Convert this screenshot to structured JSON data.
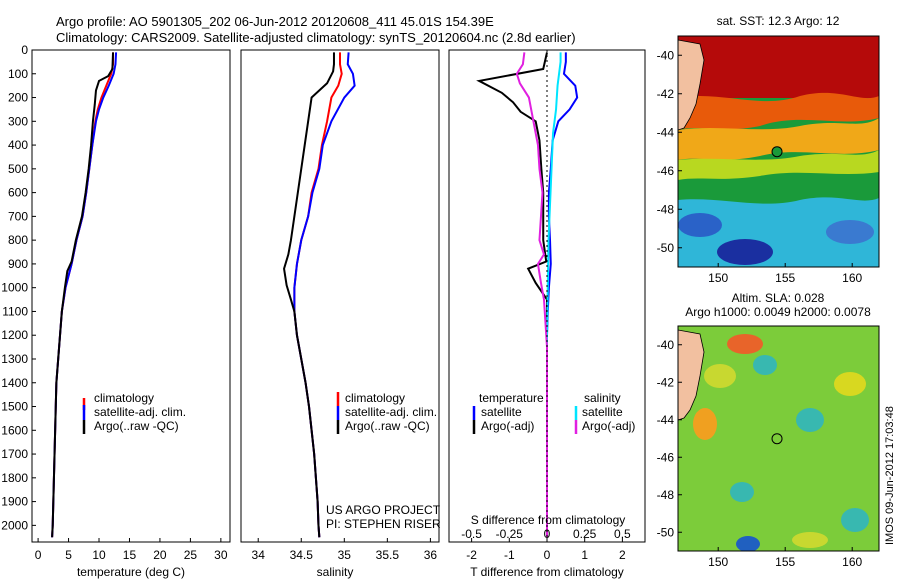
{
  "header": {
    "title_line1": "Argo profile: AO 5901305_202 06-Jun-2012 20120608_411 45.01S 154.39E",
    "title_line2": "Climatology: CARS2009. Satellite-adjusted climatology: synTS_20120604.nc (2.8d earlier)"
  },
  "colors": {
    "climatology": "#ff0000",
    "satellite": "#0000ff",
    "argo": "#000000",
    "salinity_satellite": "#00e5ff",
    "salinity_argo": "#e020e0"
  },
  "depth_axis": {
    "ticks": [
      0,
      100,
      200,
      300,
      400,
      500,
      600,
      700,
      800,
      900,
      1000,
      1100,
      1200,
      1300,
      1400,
      1500,
      1600,
      1700,
      1800,
      1900,
      2000
    ],
    "range": [
      0,
      2070
    ]
  },
  "chart_data": [
    {
      "type": "line",
      "xlabel": "temperature (deg C)",
      "xlim": [
        -1,
        31.5
      ],
      "xticks": [
        0,
        5,
        10,
        15,
        20,
        25,
        30
      ],
      "ylim": [
        0,
        2070
      ],
      "legend": {
        "placement": "center-right",
        "items": [
          "climatology",
          "satellite-adj. clim.",
          "Argo(..raw -QC)"
        ]
      },
      "series": [
        {
          "name": "climatology",
          "color": "#ff0000",
          "points": [
            [
              12.3,
              10
            ],
            [
              12.3,
              60
            ],
            [
              12.0,
              100
            ],
            [
              11.2,
              150
            ],
            [
              10.4,
              200
            ],
            [
              9.8,
              250
            ],
            [
              9.4,
              300
            ],
            [
              8.9,
              400
            ],
            [
              8.4,
              500
            ],
            [
              7.9,
              600
            ],
            [
              7.3,
              700
            ],
            [
              6.3,
              800
            ],
            [
              5.5,
              900
            ],
            [
              4.5,
              1000
            ],
            [
              3.9,
              1100
            ],
            [
              3.6,
              1200
            ],
            [
              3.3,
              1300
            ],
            [
              3.0,
              1400
            ],
            [
              2.9,
              1500
            ],
            [
              2.8,
              1600
            ],
            [
              2.7,
              1700
            ],
            [
              2.6,
              1800
            ],
            [
              2.5,
              1900
            ],
            [
              2.4,
              2000
            ],
            [
              2.3,
              2050
            ]
          ]
        },
        {
          "name": "satellite-adj. clim.",
          "color": "#0000ff",
          "points": [
            [
              12.8,
              10
            ],
            [
              12.7,
              60
            ],
            [
              12.4,
              100
            ],
            [
              11.6,
              150
            ],
            [
              10.7,
              200
            ],
            [
              10.0,
              250
            ],
            [
              9.5,
              300
            ],
            [
              8.9,
              400
            ],
            [
              8.4,
              500
            ],
            [
              7.9,
              600
            ],
            [
              7.3,
              700
            ],
            [
              6.3,
              800
            ],
            [
              5.5,
              900
            ],
            [
              4.5,
              1000
            ],
            [
              3.9,
              1100
            ],
            [
              3.6,
              1200
            ],
            [
              3.3,
              1300
            ],
            [
              3.0,
              1400
            ],
            [
              2.9,
              1500
            ],
            [
              2.8,
              1600
            ],
            [
              2.7,
              1700
            ],
            [
              2.6,
              1800
            ],
            [
              2.5,
              1900
            ],
            [
              2.4,
              2000
            ],
            [
              2.3,
              2050
            ]
          ]
        },
        {
          "name": "Argo(..raw -QC)",
          "color": "#000000",
          "points": [
            [
              12.3,
              10
            ],
            [
              12.2,
              80
            ],
            [
              11.5,
              110
            ],
            [
              10.0,
              130
            ],
            [
              9.5,
              170
            ],
            [
              9.3,
              230
            ],
            [
              9.0,
              300
            ],
            [
              8.7,
              400
            ],
            [
              8.3,
              500
            ],
            [
              7.8,
              600
            ],
            [
              7.2,
              700
            ],
            [
              6.2,
              800
            ],
            [
              5.5,
              890
            ],
            [
              4.8,
              930
            ],
            [
              4.4,
              1000
            ],
            [
              3.9,
              1100
            ],
            [
              3.6,
              1200
            ],
            [
              3.3,
              1300
            ],
            [
              3.0,
              1400
            ],
            [
              2.9,
              1500
            ],
            [
              2.8,
              1600
            ],
            [
              2.7,
              1700
            ],
            [
              2.6,
              1800
            ],
            [
              2.5,
              1900
            ],
            [
              2.4,
              2000
            ],
            [
              2.3,
              2050
            ]
          ]
        }
      ]
    },
    {
      "type": "line",
      "xlabel": "salinity",
      "xlim": [
        33.8,
        36.1
      ],
      "xticks": [
        34,
        34.5,
        35,
        35.5,
        36
      ],
      "ylim": [
        0,
        2070
      ],
      "legend": {
        "placement": "center-right",
        "items": [
          "climatology",
          "satellite-adj. clim.",
          "Argo(..raw -QC)"
        ]
      },
      "annotation_line1": "US ARGO PROJECT",
      "annotation_line2": "PI: STEPHEN RISER",
      "series": [
        {
          "name": "climatology",
          "color": "#ff0000",
          "points": [
            [
              34.95,
              10
            ],
            [
              34.95,
              60
            ],
            [
              34.97,
              100
            ],
            [
              34.93,
              150
            ],
            [
              34.85,
              200
            ],
            [
              34.8,
              300
            ],
            [
              34.74,
              400
            ],
            [
              34.7,
              500
            ],
            [
              34.62,
              600
            ],
            [
              34.58,
              700
            ],
            [
              34.5,
              800
            ],
            [
              34.45,
              900
            ],
            [
              34.42,
              1000
            ],
            [
              34.42,
              1100
            ],
            [
              34.45,
              1200
            ],
            [
              34.5,
              1300
            ],
            [
              34.55,
              1400
            ],
            [
              34.59,
              1500
            ],
            [
              34.62,
              1600
            ],
            [
              34.65,
              1700
            ],
            [
              34.67,
              1800
            ],
            [
              34.69,
              1900
            ],
            [
              34.7,
              2000
            ],
            [
              34.71,
              2050
            ]
          ]
        },
        {
          "name": "satellite-adj. clim.",
          "color": "#0000ff",
          "points": [
            [
              35.05,
              10
            ],
            [
              35.04,
              60
            ],
            [
              35.1,
              100
            ],
            [
              35.12,
              150
            ],
            [
              35.0,
              200
            ],
            [
              34.85,
              300
            ],
            [
              34.75,
              400
            ],
            [
              34.71,
              500
            ],
            [
              34.63,
              600
            ],
            [
              34.58,
              700
            ],
            [
              34.5,
              800
            ],
            [
              34.45,
              900
            ],
            [
              34.42,
              1000
            ],
            [
              34.42,
              1100
            ],
            [
              34.45,
              1200
            ],
            [
              34.5,
              1300
            ],
            [
              34.55,
              1400
            ],
            [
              34.59,
              1500
            ],
            [
              34.62,
              1600
            ],
            [
              34.65,
              1700
            ],
            [
              34.67,
              1800
            ],
            [
              34.69,
              1900
            ],
            [
              34.7,
              2000
            ],
            [
              34.71,
              2050
            ]
          ]
        },
        {
          "name": "Argo(..raw -QC)",
          "color": "#000000",
          "points": [
            [
              34.88,
              10
            ],
            [
              34.88,
              60
            ],
            [
              34.87,
              90
            ],
            [
              34.8,
              140
            ],
            [
              34.62,
              200
            ],
            [
              34.58,
              300
            ],
            [
              34.54,
              400
            ],
            [
              34.5,
              500
            ],
            [
              34.46,
              600
            ],
            [
              34.42,
              700
            ],
            [
              34.38,
              800
            ],
            [
              34.35,
              860
            ],
            [
              34.3,
              920
            ],
            [
              34.33,
              990
            ],
            [
              34.38,
              1050
            ],
            [
              34.42,
              1100
            ],
            [
              34.45,
              1200
            ],
            [
              34.5,
              1300
            ],
            [
              34.55,
              1400
            ],
            [
              34.59,
              1500
            ],
            [
              34.62,
              1600
            ],
            [
              34.65,
              1700
            ],
            [
              34.67,
              1800
            ],
            [
              34.69,
              1900
            ],
            [
              34.7,
              2000
            ],
            [
              34.71,
              2050
            ]
          ]
        }
      ]
    },
    {
      "type": "line",
      "xlabel": "T difference from climatology",
      "top_axis_label": "S difference from climatology",
      "xlim": [
        -2.6,
        2.6
      ],
      "xticks": [
        -2,
        -1,
        0,
        1,
        2
      ],
      "top_xlim": [
        -0.65,
        0.65
      ],
      "top_xticks_labels": [
        "-0.5",
        "-0.25",
        "0",
        "0.25",
        "0.5"
      ],
      "top_xticks": [
        -0.5,
        -0.25,
        0,
        0.25,
        0.5
      ],
      "ylim": [
        0,
        2070
      ],
      "legend_temperature": {
        "header": "temperature",
        "items": [
          "satellite",
          "Argo(-adj)"
        ]
      },
      "legend_salinity": {
        "header": "salinity",
        "items": [
          "satellite",
          "Argo(-adj)"
        ]
      },
      "series": [
        {
          "name": "temperature satellite",
          "color": "#0000ff",
          "points": [
            [
              0.5,
              10
            ],
            [
              0.5,
              50
            ],
            [
              0.45,
              100
            ],
            [
              0.75,
              150
            ],
            [
              0.8,
              200
            ],
            [
              0.6,
              250
            ],
            [
              0.3,
              300
            ],
            [
              0.15,
              380
            ],
            [
              0.1,
              500
            ],
            [
              0.05,
              600
            ],
            [
              0.05,
              700
            ],
            [
              0.08,
              800
            ],
            [
              0.1,
              900
            ],
            [
              0.05,
              1000
            ],
            [
              0.02,
              1100
            ],
            [
              0.0,
              1200
            ],
            [
              0.0,
              1400
            ],
            [
              0.0,
              2050
            ]
          ]
        },
        {
          "name": "temperature Argo(-adj)",
          "color": "#000000",
          "points": [
            [
              0.0,
              10
            ],
            [
              -0.1,
              80
            ],
            [
              -1.8,
              130
            ],
            [
              -1.2,
              180
            ],
            [
              -0.9,
              220
            ],
            [
              -0.7,
              260
            ],
            [
              -0.3,
              300
            ],
            [
              -0.2,
              380
            ],
            [
              -0.15,
              500
            ],
            [
              -0.1,
              600
            ],
            [
              -0.1,
              700
            ],
            [
              -0.1,
              800
            ],
            [
              -0.02,
              890
            ],
            [
              -0.5,
              920
            ],
            [
              -0.3,
              980
            ],
            [
              0.0,
              1050
            ],
            [
              0.0,
              1200
            ],
            [
              0.0,
              1400
            ],
            [
              0.0,
              2050
            ]
          ]
        },
        {
          "name": "salinity satellite",
          "color": "#00e5ff",
          "points": [
            [
              0.09,
              10
            ],
            [
              0.09,
              50
            ],
            [
              0.08,
              100
            ],
            [
              0.07,
              150
            ],
            [
              0.06,
              250
            ],
            [
              0.04,
              350
            ],
            [
              0.03,
              500
            ],
            [
              0.02,
              650
            ],
            [
              0.01,
              800
            ],
            [
              0.005,
              1000
            ],
            [
              0.0,
              1200
            ],
            [
              0.0,
              2050
            ]
          ]
        },
        {
          "name": "salinity Argo(-adj)",
          "color": "#e020e0",
          "points": [
            [
              -0.15,
              10
            ],
            [
              -0.16,
              60
            ],
            [
              -0.2,
              100
            ],
            [
              -0.18,
              140
            ],
            [
              -0.12,
              200
            ],
            [
              -0.09,
              300
            ],
            [
              -0.06,
              400
            ],
            [
              -0.05,
              500
            ],
            [
              -0.03,
              600
            ],
            [
              -0.04,
              700
            ],
            [
              -0.05,
              800
            ],
            [
              -0.02,
              860
            ],
            [
              -0.06,
              900
            ],
            [
              -0.04,
              980
            ],
            [
              -0.02,
              1050
            ],
            [
              -0.01,
              1150
            ],
            [
              0.0,
              1250
            ],
            [
              0.0,
              1400
            ],
            [
              0.0,
              2050
            ]
          ]
        }
      ]
    },
    {
      "type": "heatmap",
      "title": "sat. SST: 12.3 Argo: 12",
      "xlim": [
        147,
        162
      ],
      "ylim": [
        -51,
        -39
      ],
      "xticks": [
        150,
        155,
        160
      ],
      "yticks": [
        -40,
        -42,
        -44,
        -46,
        -48,
        -50
      ],
      "marker": {
        "lon": 154.39,
        "lat": -45.01
      }
    },
    {
      "type": "heatmap",
      "title_line1": "Altim. SLA: 0.028",
      "title_line2": "Argo h1000: 0.0049 h2000: 0.0078",
      "xlim": [
        147,
        162
      ],
      "ylim": [
        -51,
        -39
      ],
      "xticks": [
        150,
        155,
        160
      ],
      "yticks": [
        -40,
        -42,
        -44,
        -46,
        -48,
        -50
      ],
      "marker": {
        "lon": 154.39,
        "lat": -45.01
      }
    }
  ],
  "footer_stamp": "IMOS 09-Jun-2012 17:03:48"
}
